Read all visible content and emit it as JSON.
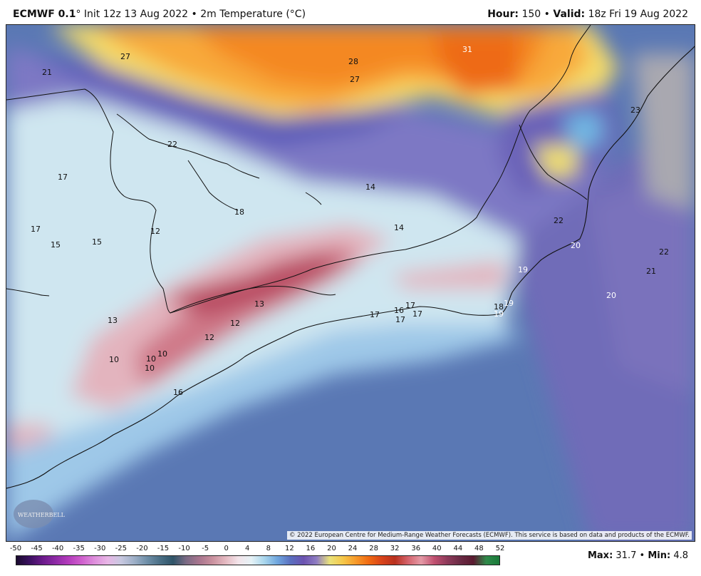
{
  "header": {
    "model": "ECMWF 0.1",
    "degree": "°",
    "init": "Init 12z 13 Aug 2022",
    "sep": "•",
    "field": "2m Temperature (°C)",
    "hour_label": "Hour:",
    "hour_value": "150",
    "valid_label": "Valid:",
    "valid_value": "18z Fri 19 Aug 2022"
  },
  "footer": {
    "copyright": "© 2022 European Centre for Medium-Range Weather Forecasts (ECMWF). This service is based on data and products of the ECMWF.",
    "max_label": "Max:",
    "max_value": "31.7",
    "min_label": "Min:",
    "min_value": "4.8",
    "logo_text": "WEATHERBELL"
  },
  "colorbar": {
    "ticks": [
      "-50",
      "-45",
      "-40",
      "-35",
      "-30",
      "-25",
      "-20",
      "-15",
      "-10",
      "-5",
      "0",
      "4",
      "8",
      "12",
      "16",
      "20",
      "24",
      "28",
      "32",
      "36",
      "40",
      "44",
      "48",
      "52"
    ],
    "stops": [
      "#1a0b2e",
      "#3b1060",
      "#6a1a8a",
      "#8e2aa6",
      "#b43cbc",
      "#cf5fcd",
      "#de8fdc",
      "#e8b6e6",
      "#c8c8e0",
      "#9fb0c8",
      "#6f8fa8",
      "#4b6f86",
      "#2f5468",
      "#7a6a84",
      "#a8758e",
      "#c9909e",
      "#e4b8c0",
      "#f3e4ea",
      "#e6f2f6",
      "#a9d6ec",
      "#6fa6de",
      "#5a6fbf",
      "#6b52b0",
      "#8f7dc2",
      "#e9e27a",
      "#f5c84a",
      "#f79a2a",
      "#f06a12",
      "#d8431a",
      "#b8301e",
      "#d4636c",
      "#e49aa6",
      "#c05070",
      "#8e3a5a",
      "#6a2a44",
      "#5a1a30",
      "#2f8a4a",
      "#1a7a3a"
    ]
  },
  "map_labels": [
    {
      "t": "27",
      "c": "#111"
    },
    {
      "t": "21",
      "c": "#111"
    },
    {
      "t": "28",
      "c": "#111"
    },
    {
      "t": "27",
      "c": "#111"
    },
    {
      "t": "31",
      "c": "#ffffff"
    },
    {
      "t": "23",
      "c": "#111"
    },
    {
      "t": "22",
      "c": "#111"
    },
    {
      "t": "17",
      "c": "#111"
    },
    {
      "t": "14",
      "c": "#111"
    },
    {
      "t": "18",
      "c": "#111"
    },
    {
      "t": "17",
      "c": "#111"
    },
    {
      "t": "15",
      "c": "#111"
    },
    {
      "t": "15",
      "c": "#111"
    },
    {
      "t": "12",
      "c": "#111"
    },
    {
      "t": "14",
      "c": "#111"
    },
    {
      "t": "22",
      "c": "#111"
    },
    {
      "t": "20",
      "c": "#ffffff"
    },
    {
      "t": "22",
      "c": "#111"
    },
    {
      "t": "21",
      "c": "#111"
    },
    {
      "t": "19",
      "c": "#ffffff"
    },
    {
      "t": "20",
      "c": "#ffffff"
    },
    {
      "t": "13",
      "c": "#111"
    },
    {
      "t": "12",
      "c": "#111"
    },
    {
      "t": "17",
      "c": "#111"
    },
    {
      "t": "16",
      "c": "#111"
    },
    {
      "t": "17",
      "c": "#111"
    },
    {
      "t": "17",
      "c": "#111"
    },
    {
      "t": "17",
      "c": "#111"
    },
    {
      "t": "18",
      "c": "#111"
    },
    {
      "t": "19",
      "c": "#ffffff"
    },
    {
      "t": "19",
      "c": "#ffffff"
    },
    {
      "t": "13",
      "c": "#111"
    },
    {
      "t": "12",
      "c": "#111"
    },
    {
      "t": "10",
      "c": "#111"
    },
    {
      "t": "10",
      "c": "#111"
    },
    {
      "t": "10",
      "c": "#111"
    },
    {
      "t": "10",
      "c": "#111"
    },
    {
      "t": "16",
      "c": "#111"
    }
  ]
}
